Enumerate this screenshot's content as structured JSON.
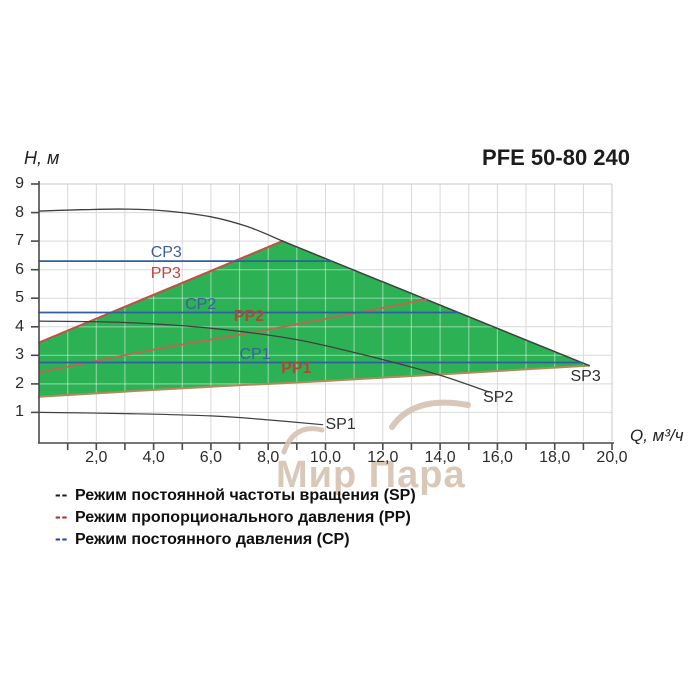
{
  "title": "PFE 50-80 240",
  "axes": {
    "y_label": "H, м",
    "x_label": "Q, м³/ч"
  },
  "watermark": {
    "text": "Мир Пара",
    "color": "#d5c1b1"
  },
  "legend": [
    {
      "dash": "--",
      "color": "#1a1a1a",
      "label": "Режим постоянной частоты вращения (SP)"
    },
    {
      "dash": "--",
      "color": "#c01f1f",
      "label": "Режим пропорционального давления (PP)"
    },
    {
      "dash": "--",
      "color": "#2438b8",
      "label": "Режим постоянного давления (CP)"
    }
  ],
  "chart_data": {
    "type": "line",
    "title": "PFE 50-80 240",
    "xlabel": "Q, м³/ч",
    "ylabel": "H, м",
    "xlim": [
      0,
      20
    ],
    "ylim": [
      0,
      9
    ],
    "grid": true,
    "grid_color": "#d9d9d9",
    "x_ticks": {
      "values": [
        2,
        4,
        6,
        8,
        10,
        12,
        14,
        16,
        18,
        20
      ],
      "labels": [
        "2,0",
        "4,0",
        "6,0",
        "8,0",
        "10,0",
        "12,0",
        "14,0",
        "16,0",
        "18,0",
        "20,0"
      ]
    },
    "y_ticks": {
      "values": [
        1,
        2,
        3,
        4,
        5,
        6,
        7,
        8,
        9
      ],
      "labels": [
        "1",
        "2",
        "3",
        "4",
        "5",
        "6",
        "7",
        "8",
        "9"
      ]
    },
    "region": {
      "name": "operating-envelope",
      "fill": "#2db155",
      "points": [
        [
          0,
          3.45
        ],
        [
          8.5,
          7.0
        ],
        [
          19.2,
          2.64
        ],
        [
          10,
          2.1
        ],
        [
          6,
          1.9
        ],
        [
          0,
          1.55
        ]
      ]
    },
    "series": [
      {
        "name": "PP1",
        "color": "#b08a5a",
        "width": 2.0,
        "smooth": true,
        "points": [
          [
            0,
            1.55
          ],
          [
            6,
            1.9
          ],
          [
            10,
            2.1
          ],
          [
            19.2,
            2.64
          ]
        ]
      },
      {
        "name": "PP3",
        "color": "#c05044",
        "width": 2.0,
        "smooth": false,
        "points": [
          [
            0,
            3.45
          ],
          [
            8.5,
            7.0
          ]
        ]
      },
      {
        "name": "SP3-max-edge",
        "color": "#3f3f3f",
        "width": 1.5,
        "smooth": false,
        "points": [
          [
            8.5,
            7.0
          ],
          [
            19.2,
            2.64
          ]
        ]
      },
      {
        "name": "PP2",
        "color": "#bf6550",
        "width": 1.8,
        "smooth": true,
        "points": [
          [
            0,
            2.4
          ],
          [
            4,
            3.2
          ],
          [
            8,
            3.9
          ],
          [
            13.5,
            4.95
          ]
        ]
      },
      {
        "name": "CP3",
        "color": "#2f5fa0",
        "width": 1.8,
        "smooth": false,
        "points": [
          [
            0,
            6.3
          ],
          [
            10.2,
            6.3
          ]
        ]
      },
      {
        "name": "CP2",
        "color": "#2f5fa0",
        "width": 1.8,
        "smooth": false,
        "points": [
          [
            0,
            4.5
          ],
          [
            14.63,
            4.5
          ]
        ]
      },
      {
        "name": "CP1",
        "color": "#2f5fa0",
        "width": 1.8,
        "smooth": false,
        "points": [
          [
            0,
            2.75
          ],
          [
            18.93,
            2.75
          ]
        ]
      },
      {
        "name": "SP3-arc",
        "color": "#3f3f3f",
        "width": 1.3,
        "smooth": true,
        "points": [
          [
            0,
            8.05
          ],
          [
            1.5,
            8.1
          ],
          [
            3,
            8.12
          ],
          [
            4.5,
            8.05
          ],
          [
            6,
            7.85
          ],
          [
            7.3,
            7.5
          ],
          [
            8.5,
            7.0
          ]
        ]
      },
      {
        "name": "SP2",
        "color": "#3f3f3f",
        "width": 1.3,
        "smooth": true,
        "points": [
          [
            0,
            4.2
          ],
          [
            3,
            4.15
          ],
          [
            6,
            3.95
          ],
          [
            9,
            3.55
          ],
          [
            12,
            2.85
          ],
          [
            14,
            2.3
          ],
          [
            15.7,
            1.72
          ]
        ]
      },
      {
        "name": "SP1",
        "color": "#3f3f3f",
        "width": 1.2,
        "smooth": true,
        "points": [
          [
            0,
            1.0
          ],
          [
            3,
            0.96
          ],
          [
            6,
            0.88
          ],
          [
            8,
            0.74
          ],
          [
            9.9,
            0.57
          ]
        ]
      }
    ],
    "curve_labels": [
      {
        "text": "CP3",
        "q": 3.9,
        "h_top": 6.9,
        "color": "#3b5f9f",
        "bold": false
      },
      {
        "text": "PP3",
        "q": 3.9,
        "h_top": 6.16,
        "color": "#c0433a",
        "bold": false
      },
      {
        "text": "CP2",
        "q": 5.1,
        "h_top": 5.08,
        "color": "#3b5f9f",
        "bold": false
      },
      {
        "text": "PP2",
        "q": 6.8,
        "h_top": 4.66,
        "color": "#ab4a32",
        "bold": true
      },
      {
        "text": "CP1",
        "q": 7.0,
        "h_top": 3.33,
        "color": "#3b5f9f",
        "bold": false
      },
      {
        "text": "PP1",
        "q": 8.45,
        "h_top": 2.84,
        "color": "#ab4a32",
        "bold": true
      },
      {
        "text": "SP1",
        "q": 10.0,
        "h_top": 0.88,
        "color": "#2e2e2e",
        "bold": false
      },
      {
        "text": "SP2",
        "q": 15.5,
        "h_top": 1.82,
        "color": "#2e2e2e",
        "bold": false
      },
      {
        "text": "SP3",
        "q": 18.55,
        "h_top": 2.56,
        "color": "#2e2e2e",
        "bold": false
      }
    ]
  }
}
